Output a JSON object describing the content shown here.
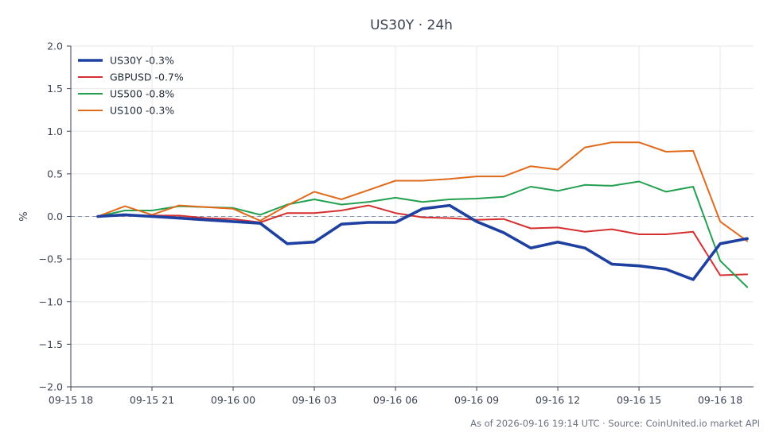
{
  "chart_data": {
    "type": "line",
    "title": "US30Y · 24h",
    "xlabel": "",
    "ylabel": "%",
    "ylim": [
      -2.0,
      2.0
    ],
    "yticks": [
      -2.0,
      -1.5,
      -1.0,
      -0.5,
      0.0,
      0.5,
      1.0,
      1.5,
      2.0
    ],
    "ytick_labels": [
      "−2.0",
      "−1.5",
      "−1.0",
      "−0.5",
      "0.0",
      "0.5",
      "1.0",
      "1.5",
      "2.0"
    ],
    "xlim": [
      "2026-09-15 18:00",
      "2026-09-16 19:14"
    ],
    "x": [
      "2026-09-15 19:00",
      "2026-09-15 20:00",
      "2026-09-15 21:00",
      "2026-09-15 22:00",
      "2026-09-15 23:00",
      "2026-09-16 00:00",
      "2026-09-16 01:00",
      "2026-09-16 02:00",
      "2026-09-16 03:00",
      "2026-09-16 04:00",
      "2026-09-16 05:00",
      "2026-09-16 06:00",
      "2026-09-16 07:00",
      "2026-09-16 08:00",
      "2026-09-16 09:00",
      "2026-09-16 10:00",
      "2026-09-16 11:00",
      "2026-09-16 12:00",
      "2026-09-16 13:00",
      "2026-09-16 14:00",
      "2026-09-16 15:00",
      "2026-09-16 16:00",
      "2026-09-16 17:00",
      "2026-09-16 18:00",
      "2026-09-16 19:00"
    ],
    "xticks": [
      "2026-09-15 18:00",
      "2026-09-15 21:00",
      "2026-09-16 00:00",
      "2026-09-16 03:00",
      "2026-09-16 06:00",
      "2026-09-16 09:00",
      "2026-09-16 12:00",
      "2026-09-16 15:00",
      "2026-09-16 18:00"
    ],
    "xtick_labels": [
      "09-15 18",
      "09-15 21",
      "09-16 00",
      "09-16 03",
      "09-16 06",
      "09-16 09",
      "09-16 12",
      "09-16 15",
      "09-16 18"
    ],
    "grid": true,
    "legend_position": "top-left",
    "reference_line": {
      "y": 0.0,
      "style": "dashed",
      "color": "#8a93a8"
    },
    "series": [
      {
        "name": "US30Y -0.3%",
        "color": "#1e40a0",
        "emphasis": "bold",
        "values": [
          0.0,
          0.02,
          0.0,
          -0.02,
          -0.04,
          -0.06,
          -0.08,
          -0.32,
          -0.3,
          -0.09,
          -0.07,
          -0.07,
          0.09,
          0.13,
          -0.06,
          -0.19,
          -0.37,
          -0.3,
          -0.37,
          -0.56,
          -0.58,
          -0.62,
          -0.74,
          -0.32,
          -0.26
        ]
      },
      {
        "name": "GBPUSD -0.7%",
        "color": "#d62f2f",
        "values": [
          0.0,
          0.01,
          0.01,
          0.01,
          -0.02,
          -0.03,
          -0.07,
          0.04,
          0.04,
          0.07,
          0.13,
          0.04,
          -0.01,
          -0.02,
          -0.04,
          -0.03,
          -0.14,
          -0.13,
          -0.18,
          -0.15,
          -0.21,
          -0.21,
          -0.18,
          -0.69,
          -0.68
        ]
      },
      {
        "name": "US500 -0.8%",
        "color": "#22a050",
        "values": [
          0.0,
          0.07,
          0.07,
          0.12,
          0.11,
          0.1,
          0.02,
          0.14,
          0.2,
          0.14,
          0.17,
          0.22,
          0.17,
          0.2,
          0.21,
          0.23,
          0.35,
          0.3,
          0.37,
          0.36,
          0.41,
          0.29,
          0.35,
          -0.52,
          -0.83
        ]
      },
      {
        "name": "US100 -0.3%",
        "color": "#e06a1c",
        "values": [
          0.0,
          0.12,
          0.02,
          0.13,
          0.11,
          0.09,
          -0.05,
          0.13,
          0.29,
          0.2,
          0.31,
          0.42,
          0.42,
          0.44,
          0.47,
          0.47,
          0.59,
          0.55,
          0.81,
          0.87,
          0.87,
          0.76,
          0.77,
          -0.06,
          -0.29
        ]
      }
    ]
  },
  "footer": {
    "note": "As of 2026-09-16 19:14 UTC · Source: CoinUnited.io market API"
  }
}
